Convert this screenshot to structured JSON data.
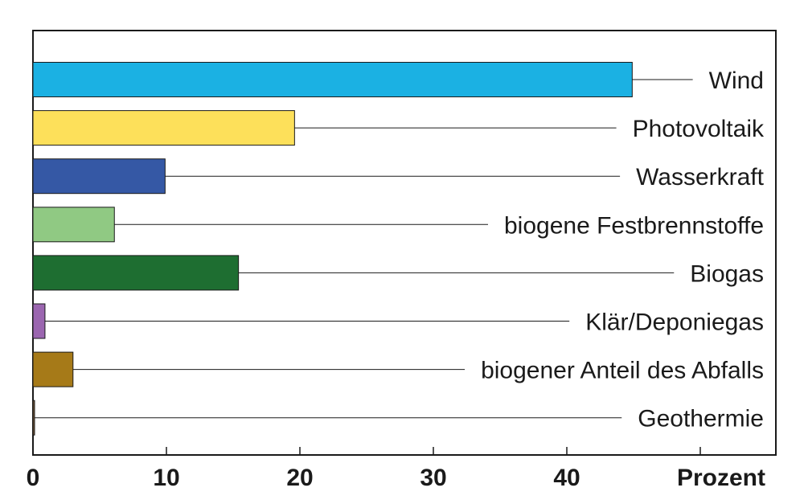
{
  "chart_data": {
    "type": "bar",
    "orientation": "horizontal",
    "categories": [
      "Wind",
      "Photovoltaik",
      "Wasserkraft",
      "biogene Festbrennstoffe",
      "Biogas",
      "Klär/Deponiegas",
      "biogener Anteil des Abfalls",
      "Geothermie"
    ],
    "values": [
      44.9,
      19.6,
      9.9,
      6.1,
      15.4,
      0.9,
      3.0,
      0.1
    ],
    "colors": [
      "#1bb1e3",
      "#fde05a",
      "#3558a5",
      "#90c983",
      "#1e6e31",
      "#9b66b0",
      "#a67a18",
      "#7a5a3a"
    ],
    "xlim": [
      0,
      55
    ],
    "xticks": [
      0,
      10,
      20,
      30,
      40
    ],
    "xlabel": "Prozent",
    "grid": false,
    "legend": "none"
  }
}
